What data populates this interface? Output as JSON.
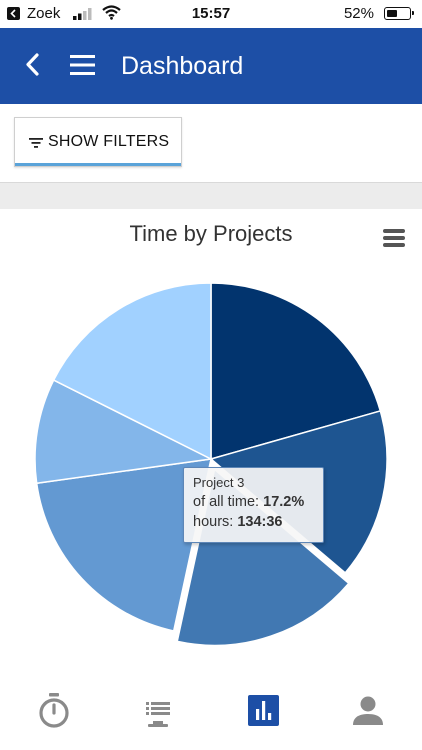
{
  "status_bar": {
    "carrier": "Zoek",
    "time": "15:57",
    "battery_percent": "52%",
    "battery_level": 0.52
  },
  "app_bar": {
    "title": "Dashboard",
    "back_icon": "chevron-left-icon",
    "menu_icon": "hamburger-menu-icon",
    "color": "#1d4fa6"
  },
  "filters": {
    "button_label": "SHOW FILTERS",
    "icon": "filter-list-icon",
    "accent_color": "#5aa3d9"
  },
  "chart_data": {
    "type": "pie",
    "title": "Time by Projects",
    "slices": [
      {
        "name": "",
        "value": 20.6,
        "color": "#02346e"
      },
      {
        "name": "",
        "value": 15.6,
        "color": "#1e5591"
      },
      {
        "name": "Project 3",
        "value": 17.2,
        "color": "#4178b2",
        "sliced": true
      },
      {
        "name": "",
        "value": 19.4,
        "color": "#6399d2"
      },
      {
        "name": "",
        "value": 9.6,
        "color": "#83b6ea"
      },
      {
        "name": "",
        "value": 17.6,
        "color": "#a1d1ff"
      }
    ],
    "tooltip": {
      "project": "Project 3",
      "all_time_label": "of all time:",
      "all_time_value": "17.2%",
      "hours_label": "hours:",
      "hours_value": "134:36"
    }
  },
  "bottom_nav": {
    "items": [
      {
        "icon": "stopwatch-icon",
        "active": false
      },
      {
        "icon": "timesheet-list-icon",
        "active": false
      },
      {
        "icon": "bar-chart-icon",
        "active": true
      },
      {
        "icon": "person-icon",
        "active": false
      }
    ],
    "active_color": "#1d4fa6",
    "inactive_color": "#8a8a8a"
  }
}
